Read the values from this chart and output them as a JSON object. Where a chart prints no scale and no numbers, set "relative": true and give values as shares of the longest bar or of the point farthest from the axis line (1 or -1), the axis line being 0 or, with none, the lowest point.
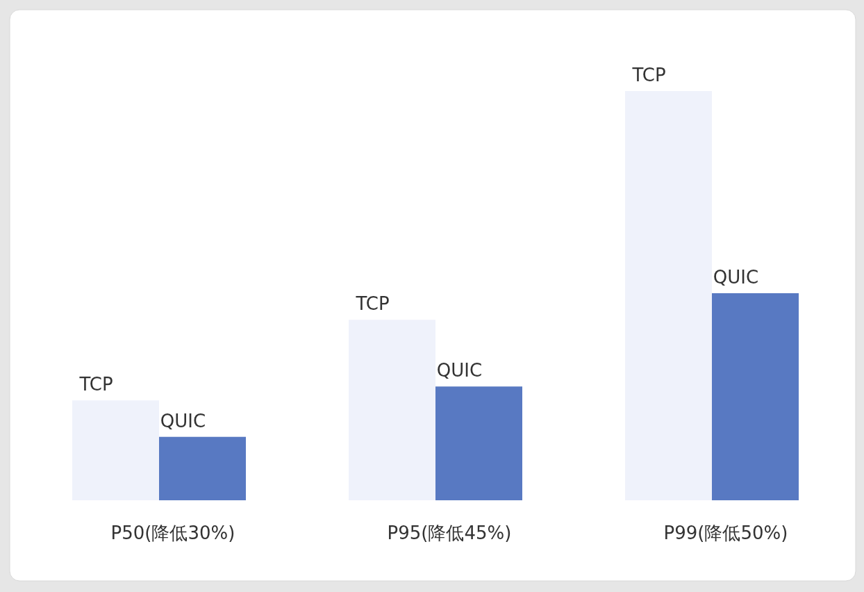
{
  "chart_data": {
    "type": "bar",
    "relative": true,
    "categories": [
      "P50(降低30%)",
      "P95(降低45%)",
      "P99(降低50%)"
    ],
    "series": [
      {
        "name": "TCP",
        "color": "#eff2fb",
        "values": [
          0.244,
          0.441,
          1
        ]
      },
      {
        "name": "QUIC",
        "color": "#5879c2",
        "values": [
          0.155,
          0.278,
          0.506
        ]
      }
    ]
  }
}
